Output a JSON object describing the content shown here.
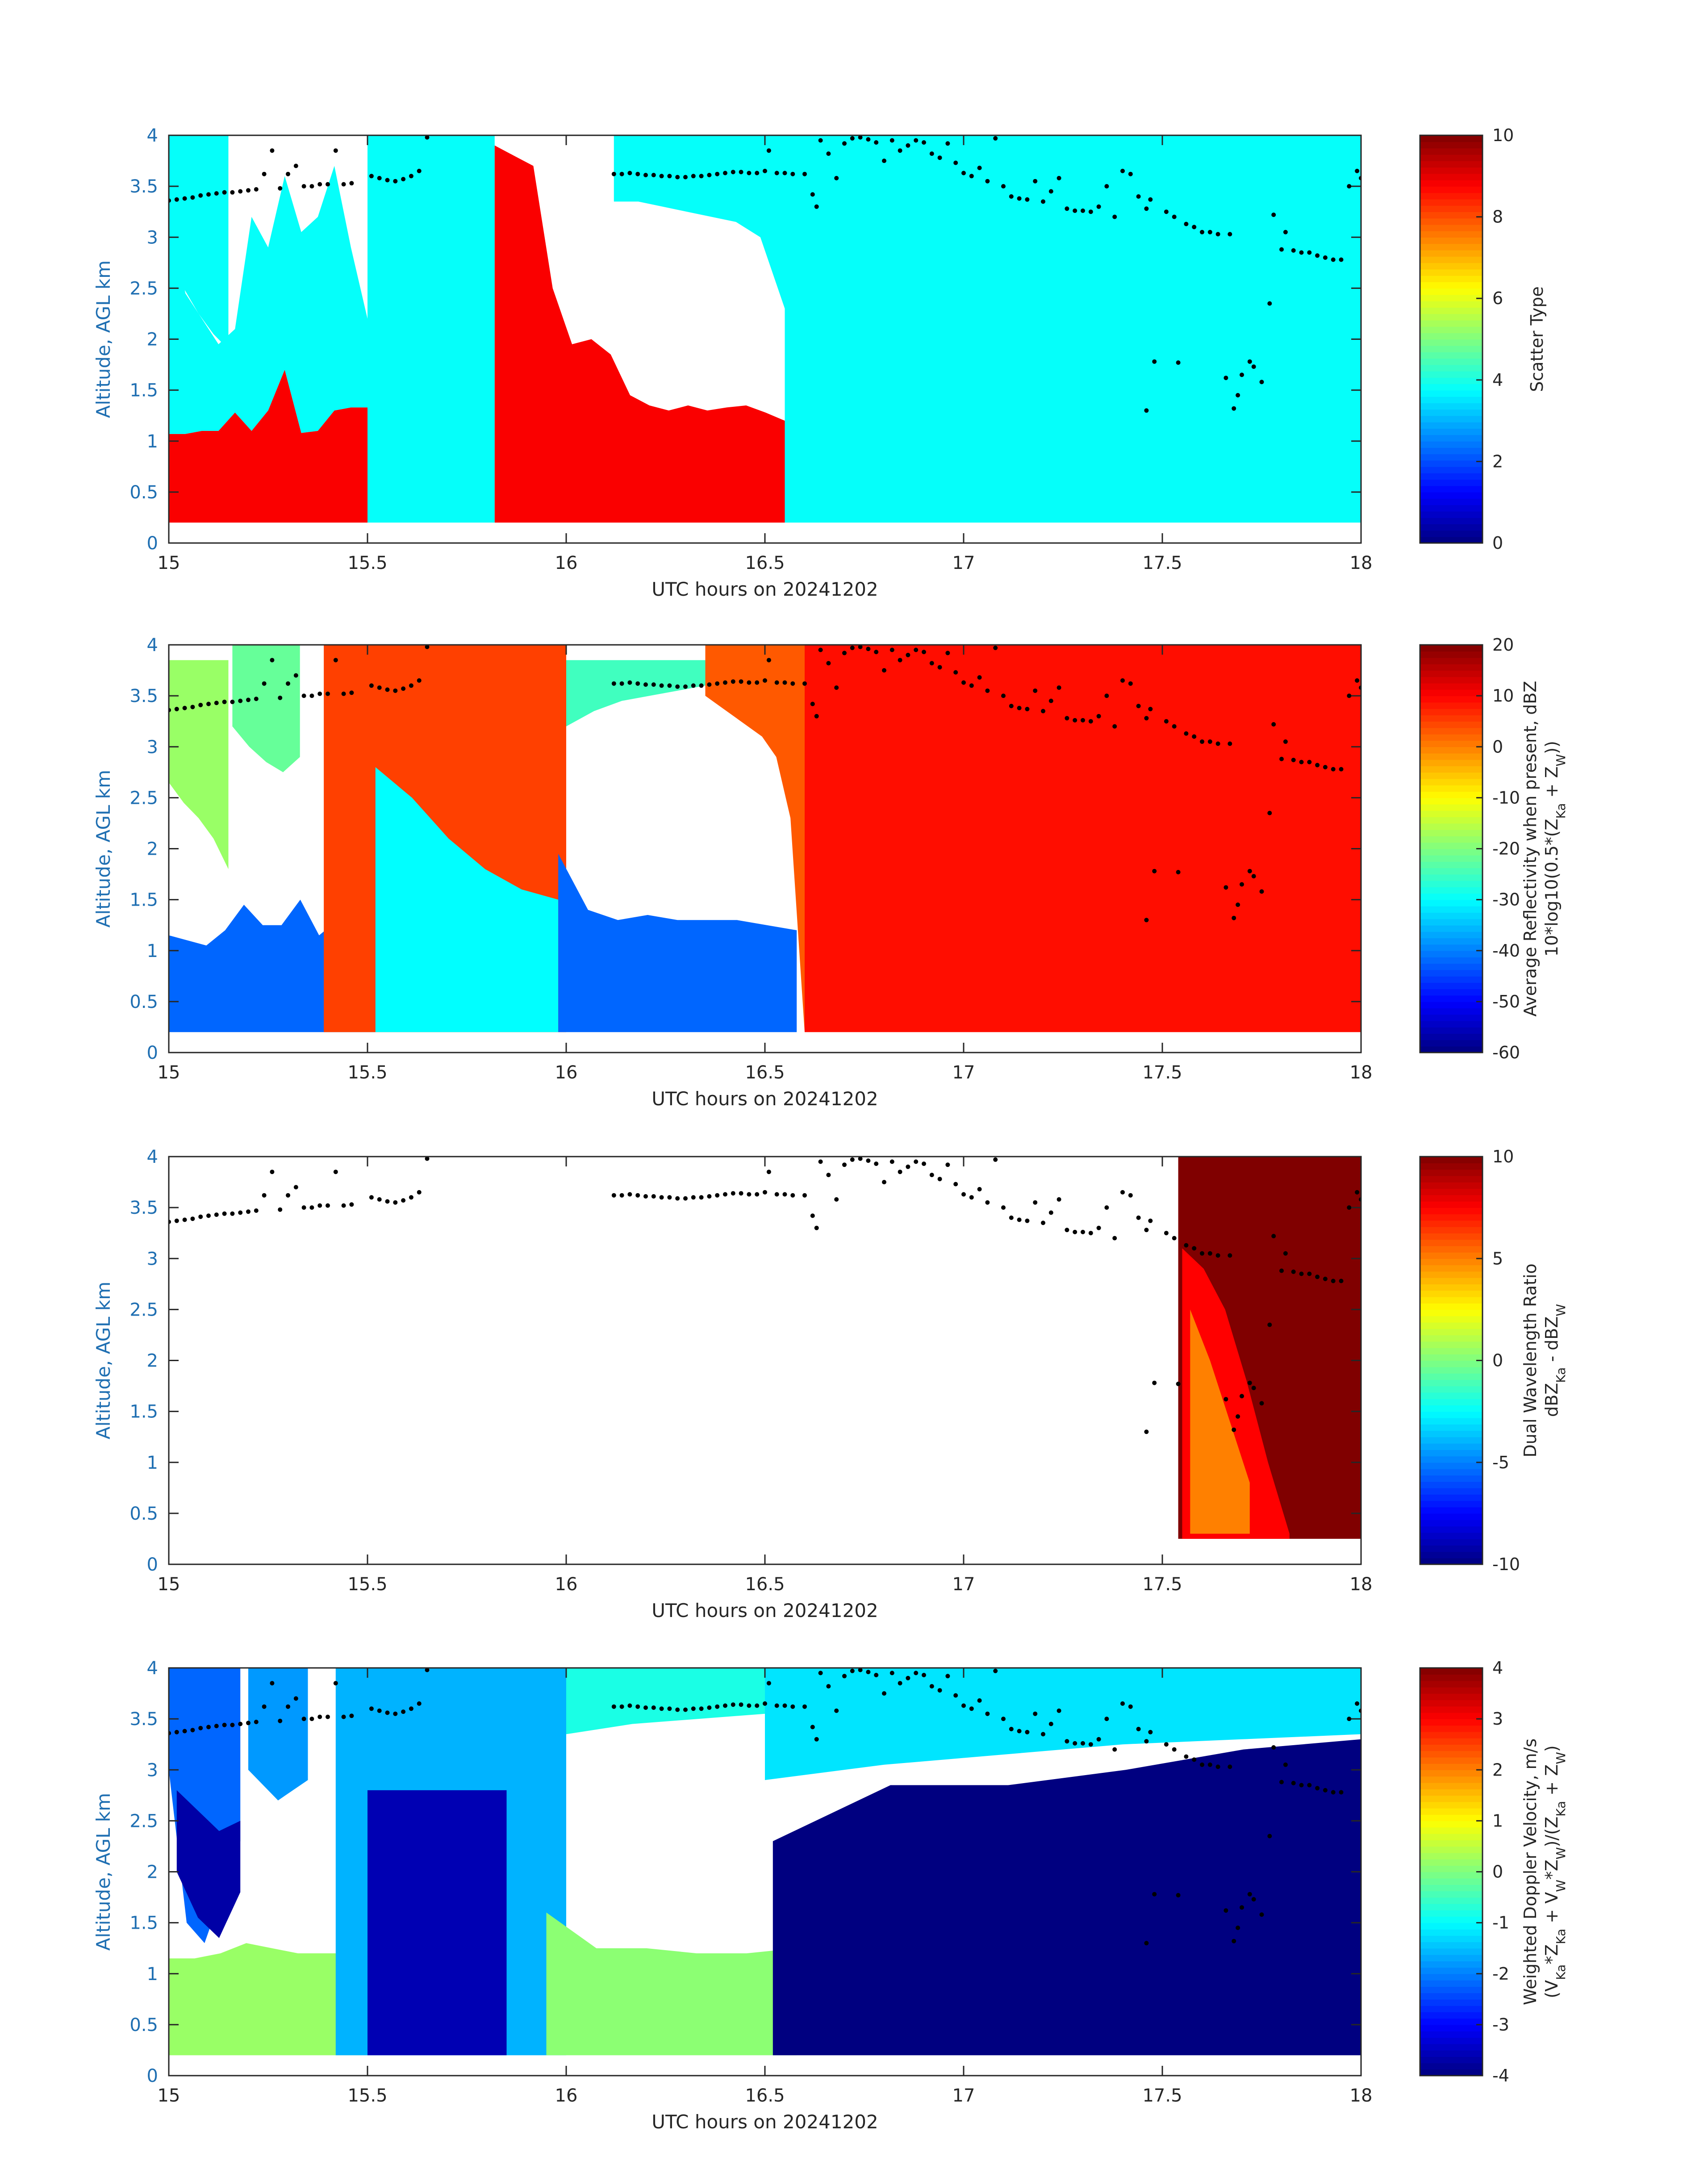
{
  "figure": {
    "colormap": "jet",
    "marker_color": "#000000",
    "axis_color": "#262626",
    "ylabel_color": "#1f6fb2"
  },
  "chart_data": [
    {
      "type": "heatmap",
      "xlabel": "UTC hours on 20241202",
      "ylabel": "Altitude, AGL km",
      "xlim": [
        15,
        18
      ],
      "ylim": [
        0,
        4
      ],
      "xticks": [
        "15",
        "15.5",
        "16",
        "16.5",
        "17",
        "17.5",
        "18"
      ],
      "yticks": [
        "0",
        "0.5",
        "1",
        "1.5",
        "2",
        "2.5",
        "3",
        "3.5",
        "4"
      ],
      "colorbar": {
        "label": [
          "Scatter Type"
        ],
        "range": [
          0,
          10
        ],
        "ticks": [
          "0",
          "2",
          "4",
          "6",
          "8",
          "10"
        ]
      },
      "regions": [
        {
          "x": [
            15.0,
            15.5
          ],
          "y_bottom": 0.2,
          "y_top": [
            1.07,
            1.07,
            1.1,
            1.1,
            1.28,
            1.1,
            1.3,
            1.7,
            1.08,
            1.1,
            1.3,
            1.33,
            1.33
          ],
          "value": 8.8
        },
        {
          "x": [
            15.0,
            15.5
          ],
          "y_bottom": [
            1.07,
            1.07,
            1.1,
            1.1,
            1.28,
            1.1,
            1.3,
            1.7,
            1.08,
            1.1,
            1.3,
            1.33,
            1.33
          ],
          "y_top": [
            3.4,
            2.45,
            2.2,
            1.95,
            2.1,
            3.2,
            2.9,
            3.6,
            3.05,
            3.2,
            3.7,
            2.9,
            2.2
          ],
          "value": 3.8
        },
        {
          "x": [
            15.0,
            15.15
          ],
          "y_bottom": [
            2.65,
            2.5,
            2.25,
            2.05,
            1.9
          ],
          "y_top": 4.0,
          "value": 3.8
        },
        {
          "x": [
            15.5,
            15.82
          ],
          "y_bottom": 0.2,
          "y_top": 4.0,
          "value": 3.8
        },
        {
          "x": [
            15.82,
            16.55
          ],
          "y_bottom": 0.2,
          "y_top": [
            3.9,
            3.8,
            3.7,
            2.5,
            1.95,
            2.0,
            1.85,
            1.45,
            1.35,
            1.3,
            1.35,
            1.3,
            1.33,
            1.35,
            1.28,
            1.2
          ],
          "value": 8.8
        },
        {
          "x": [
            16.12,
            16.55
          ],
          "y_bottom": [
            3.35,
            3.35,
            3.3,
            3.25,
            3.2,
            3.15,
            3.0,
            2.3
          ],
          "y_top": 4.0,
          "value": 3.8
        },
        {
          "x": [
            16.55,
            18.0
          ],
          "y_bottom": 0.2,
          "y_top": 4.0,
          "value": 3.8
        }
      ]
    },
    {
      "type": "heatmap",
      "xlabel": "UTC hours on 20241202",
      "ylabel": "Altitude, AGL km",
      "xlim": [
        15,
        18
      ],
      "ylim": [
        0,
        4
      ],
      "xticks": [
        "15",
        "15.5",
        "16",
        "16.5",
        "17",
        "17.5",
        "18"
      ],
      "yticks": [
        "0",
        "0.5",
        "1",
        "1.5",
        "2",
        "2.5",
        "3",
        "3.5",
        "4"
      ],
      "colorbar": {
        "label": [
          "Average Reflectivity when present, dBZ",
          "10*log10(0.5*(Z_Ka + Z_W))"
        ],
        "range": [
          -60,
          20
        ],
        "ticks": [
          "-60",
          "-50",
          "-40",
          "-30",
          "-20",
          "-10",
          "0",
          "10",
          "20"
        ]
      },
      "regions": [
        {
          "x": [
            15.0,
            15.52
          ],
          "y_bottom": 0.2,
          "y_top": [
            1.15,
            1.1,
            1.05,
            1.2,
            1.45,
            1.25,
            1.25,
            1.5,
            1.15,
            1.3,
            1.3,
            1.3
          ],
          "value": -42
        },
        {
          "x": [
            15.0,
            15.15
          ],
          "y_bottom": [
            2.65,
            2.45,
            2.3,
            2.1,
            1.8
          ],
          "y_top": 3.85,
          "value": -18
        },
        {
          "x": [
            15.16,
            15.33
          ],
          "y_bottom": [
            3.2,
            3.0,
            2.85,
            2.75,
            2.9
          ],
          "y_top": 4.0,
          "value": -22
        },
        {
          "x": [
            15.39,
            16.0
          ],
          "y_bottom": 0.2,
          "y_top": 4.0,
          "value": 5
        },
        {
          "x": [
            15.52,
            15.98
          ],
          "y_bottom": 0.2,
          "y_top": [
            2.8,
            2.5,
            2.1,
            1.8,
            1.6,
            1.5
          ],
          "value": -30
        },
        {
          "x": [
            15.98,
            16.58
          ],
          "y_bottom": 0.2,
          "y_top": [
            1.95,
            1.4,
            1.3,
            1.35,
            1.3,
            1.3,
            1.3,
            1.25,
            1.2
          ],
          "value": -42
        },
        {
          "x": [
            16.0,
            16.35
          ],
          "y_bottom": [
            3.2,
            3.35,
            3.45,
            3.5,
            3.55,
            3.6
          ],
          "y_top": 3.85,
          "value": -25
        },
        {
          "x": [
            16.35,
            16.6
          ],
          "y_bottom": [
            3.5,
            3.4,
            3.3,
            3.2,
            3.1,
            2.9,
            2.3,
            0.2
          ],
          "y_top": 4.0,
          "value": 3
        },
        {
          "x": [
            16.6,
            18.0
          ],
          "y_bottom": 0.2,
          "y_top": 4.0,
          "value": 9
        }
      ]
    },
    {
      "type": "heatmap",
      "xlabel": "UTC hours on 20241202",
      "ylabel": "Altitude, AGL km",
      "xlim": [
        15,
        18
      ],
      "ylim": [
        0,
        4
      ],
      "xticks": [
        "15",
        "15.5",
        "16",
        "16.5",
        "17",
        "17.5",
        "18"
      ],
      "yticks": [
        "0",
        "0.5",
        "1",
        "1.5",
        "2",
        "2.5",
        "3",
        "3.5",
        "4"
      ],
      "colorbar": {
        "label": [
          "Dual Wavelength Ratio",
          "dBZ_Ka - dBZ_W"
        ],
        "range": [
          -10,
          10
        ],
        "ticks": [
          "-10",
          "-5",
          "0",
          "5",
          "10"
        ]
      },
      "regions": [
        {
          "x": [
            17.54,
            18.0
          ],
          "y_bottom": 0.25,
          "y_top": 4.0,
          "value": 10
        },
        {
          "x": [
            17.55,
            17.82
          ],
          "y_bottom": 0.25,
          "y_top": [
            3.1,
            2.9,
            2.5,
            1.8,
            1.0,
            0.3
          ],
          "value": 7.5
        },
        {
          "x": [
            17.57,
            17.72
          ],
          "y_bottom": 0.3,
          "y_top": [
            2.5,
            2.0,
            1.4,
            0.8
          ],
          "value": 5
        }
      ]
    },
    {
      "type": "heatmap",
      "xlabel": "UTC hours on 20241202",
      "ylabel": "Altitude, AGL km",
      "xlim": [
        15,
        18
      ],
      "ylim": [
        0,
        4
      ],
      "xticks": [
        "15",
        "15.5",
        "16",
        "16.5",
        "17",
        "17.5",
        "18"
      ],
      "yticks": [
        "0",
        "0.5",
        "1",
        "1.5",
        "2",
        "2.5",
        "3",
        "3.5",
        "4"
      ],
      "colorbar": {
        "label": [
          "Weighted Doppler Velocity, m/s",
          "(V_Ka*Z_Ka + V_W*Z_W)/(Z_Ka + Z_W)"
        ],
        "range": [
          -4,
          4
        ],
        "ticks": [
          "-4",
          "-3",
          "-2",
          "-1",
          "0",
          "1",
          "2",
          "3",
          "4"
        ]
      },
      "regions": [
        {
          "x": [
            15.0,
            15.52
          ],
          "y_bottom": 0.2,
          "y_top": [
            1.15,
            1.15,
            1.2,
            1.3,
            1.25,
            1.2,
            1.2,
            1.2,
            1.25
          ],
          "value": 0.2
        },
        {
          "x": [
            15.0,
            15.18
          ],
          "y_bottom": [
            3.0,
            1.5,
            1.3,
            1.8,
            2.3
          ],
          "y_top": 4.0,
          "value": -2.2
        },
        {
          "x": [
            15.02,
            15.18
          ],
          "y_bottom": [
            2.0,
            1.55,
            1.35,
            1.8
          ],
          "y_top": [
            2.8,
            2.6,
            2.4,
            2.5
          ],
          "value": -3.7
        },
        {
          "x": [
            15.2,
            15.35
          ],
          "y_bottom": [
            3.0,
            2.7,
            2.9
          ],
          "y_top": 4.0,
          "value": -1.8
        },
        {
          "x": [
            15.42,
            16.0
          ],
          "y_bottom": 0.2,
          "y_top": 4.0,
          "value": -1.6
        },
        {
          "x": [
            15.5,
            15.85
          ],
          "y_bottom": 0.2,
          "y_top": 2.8,
          "value": -3.6
        },
        {
          "x": [
            15.95,
            16.58
          ],
          "y_bottom": 0.2,
          "y_top": [
            1.6,
            1.25,
            1.25,
            1.2,
            1.2,
            1.25
          ],
          "value": 0.1
        },
        {
          "x": [
            16.0,
            16.5
          ],
          "y_bottom": [
            3.35,
            3.45,
            3.5,
            3.55
          ],
          "y_top": 4.0,
          "value": -0.8
        },
        {
          "x": [
            16.5,
            18.0
          ],
          "y_bottom": [
            2.9,
            3.05,
            3.15,
            3.25,
            3.3,
            3.35
          ],
          "y_top": 4.0,
          "value": -1.2
        },
        {
          "x": [
            16.52,
            18.0
          ],
          "y_bottom": 0.2,
          "y_top": [
            2.3,
            2.85,
            2.85,
            3.0,
            3.2,
            3.3
          ],
          "value": -4
        }
      ]
    }
  ],
  "markers": {
    "shape": "dot",
    "points": [
      [
        15.0,
        3.36
      ],
      [
        15.02,
        3.37
      ],
      [
        15.04,
        3.38
      ],
      [
        15.06,
        3.39
      ],
      [
        15.08,
        3.41
      ],
      [
        15.1,
        3.42
      ],
      [
        15.12,
        3.43
      ],
      [
        15.14,
        3.44
      ],
      [
        15.16,
        3.44
      ],
      [
        15.18,
        3.45
      ],
      [
        15.2,
        3.46
      ],
      [
        15.22,
        3.47
      ],
      [
        15.24,
        3.62
      ],
      [
        15.26,
        3.85
      ],
      [
        15.28,
        3.48
      ],
      [
        15.3,
        3.62
      ],
      [
        15.32,
        3.7
      ],
      [
        15.34,
        3.5
      ],
      [
        15.36,
        3.5
      ],
      [
        15.38,
        3.52
      ],
      [
        15.4,
        3.52
      ],
      [
        15.42,
        3.85
      ],
      [
        15.44,
        3.52
      ],
      [
        15.46,
        3.53
      ],
      [
        15.51,
        3.6
      ],
      [
        15.53,
        3.58
      ],
      [
        15.55,
        3.56
      ],
      [
        15.57,
        3.55
      ],
      [
        15.59,
        3.57
      ],
      [
        15.61,
        3.6
      ],
      [
        15.63,
        3.65
      ],
      [
        15.65,
        3.98
      ],
      [
        16.12,
        3.62
      ],
      [
        16.14,
        3.62
      ],
      [
        16.16,
        3.63
      ],
      [
        16.18,
        3.62
      ],
      [
        16.2,
        3.61
      ],
      [
        16.22,
        3.61
      ],
      [
        16.24,
        3.6
      ],
      [
        16.26,
        3.6
      ],
      [
        16.28,
        3.59
      ],
      [
        16.3,
        3.59
      ],
      [
        16.32,
        3.6
      ],
      [
        16.34,
        3.6
      ],
      [
        16.36,
        3.61
      ],
      [
        16.38,
        3.62
      ],
      [
        16.4,
        3.63
      ],
      [
        16.42,
        3.64
      ],
      [
        16.44,
        3.64
      ],
      [
        16.46,
        3.63
      ],
      [
        16.48,
        3.63
      ],
      [
        16.5,
        3.65
      ],
      [
        16.51,
        3.85
      ],
      [
        16.53,
        3.63
      ],
      [
        16.55,
        3.63
      ],
      [
        16.57,
        3.62
      ],
      [
        16.6,
        3.62
      ],
      [
        16.62,
        3.42
      ],
      [
        16.63,
        3.3
      ],
      [
        16.64,
        3.95
      ],
      [
        16.66,
        3.82
      ],
      [
        16.68,
        3.58
      ],
      [
        16.7,
        3.92
      ],
      [
        16.72,
        3.97
      ],
      [
        16.74,
        3.98
      ],
      [
        16.76,
        3.96
      ],
      [
        16.78,
        3.93
      ],
      [
        16.8,
        3.75
      ],
      [
        16.82,
        3.95
      ],
      [
        16.84,
        3.85
      ],
      [
        16.86,
        3.9
      ],
      [
        16.88,
        3.95
      ],
      [
        16.9,
        3.93
      ],
      [
        16.92,
        3.82
      ],
      [
        16.94,
        3.78
      ],
      [
        16.96,
        3.92
      ],
      [
        16.98,
        3.73
      ],
      [
        17.0,
        3.63
      ],
      [
        17.02,
        3.6
      ],
      [
        17.04,
        3.68
      ],
      [
        17.06,
        3.55
      ],
      [
        17.08,
        3.97
      ],
      [
        17.1,
        3.5
      ],
      [
        17.12,
        3.4
      ],
      [
        17.14,
        3.38
      ],
      [
        17.16,
        3.37
      ],
      [
        17.18,
        3.55
      ],
      [
        17.2,
        3.35
      ],
      [
        17.22,
        3.45
      ],
      [
        17.24,
        3.58
      ],
      [
        17.26,
        3.28
      ],
      [
        17.28,
        3.26
      ],
      [
        17.3,
        3.26
      ],
      [
        17.32,
        3.25
      ],
      [
        17.34,
        3.3
      ],
      [
        17.36,
        3.5
      ],
      [
        17.38,
        3.2
      ],
      [
        17.4,
        3.65
      ],
      [
        17.42,
        3.62
      ],
      [
        17.44,
        3.4
      ],
      [
        17.46,
        3.28
      ],
      [
        17.47,
        3.37
      ],
      [
        17.46,
        1.3
      ],
      [
        17.48,
        1.78
      ],
      [
        17.51,
        3.25
      ],
      [
        17.53,
        3.2
      ],
      [
        17.54,
        1.77
      ],
      [
        17.56,
        3.13
      ],
      [
        17.58,
        3.1
      ],
      [
        17.6,
        3.05
      ],
      [
        17.62,
        3.05
      ],
      [
        17.64,
        3.03
      ],
      [
        17.66,
        1.62
      ],
      [
        17.67,
        3.03
      ],
      [
        17.68,
        1.32
      ],
      [
        17.69,
        1.45
      ],
      [
        17.7,
        1.65
      ],
      [
        17.72,
        1.78
      ],
      [
        17.73,
        1.73
      ],
      [
        17.75,
        1.58
      ],
      [
        17.77,
        2.35
      ],
      [
        17.78,
        3.22
      ],
      [
        17.8,
        2.88
      ],
      [
        17.81,
        3.05
      ],
      [
        17.83,
        2.87
      ],
      [
        17.85,
        2.85
      ],
      [
        17.87,
        2.85
      ],
      [
        17.89,
        2.82
      ],
      [
        17.91,
        2.8
      ],
      [
        17.93,
        2.78
      ],
      [
        17.95,
        2.78
      ],
      [
        17.97,
        3.5
      ],
      [
        17.99,
        3.65
      ],
      [
        18.0,
        3.58
      ]
    ]
  }
}
